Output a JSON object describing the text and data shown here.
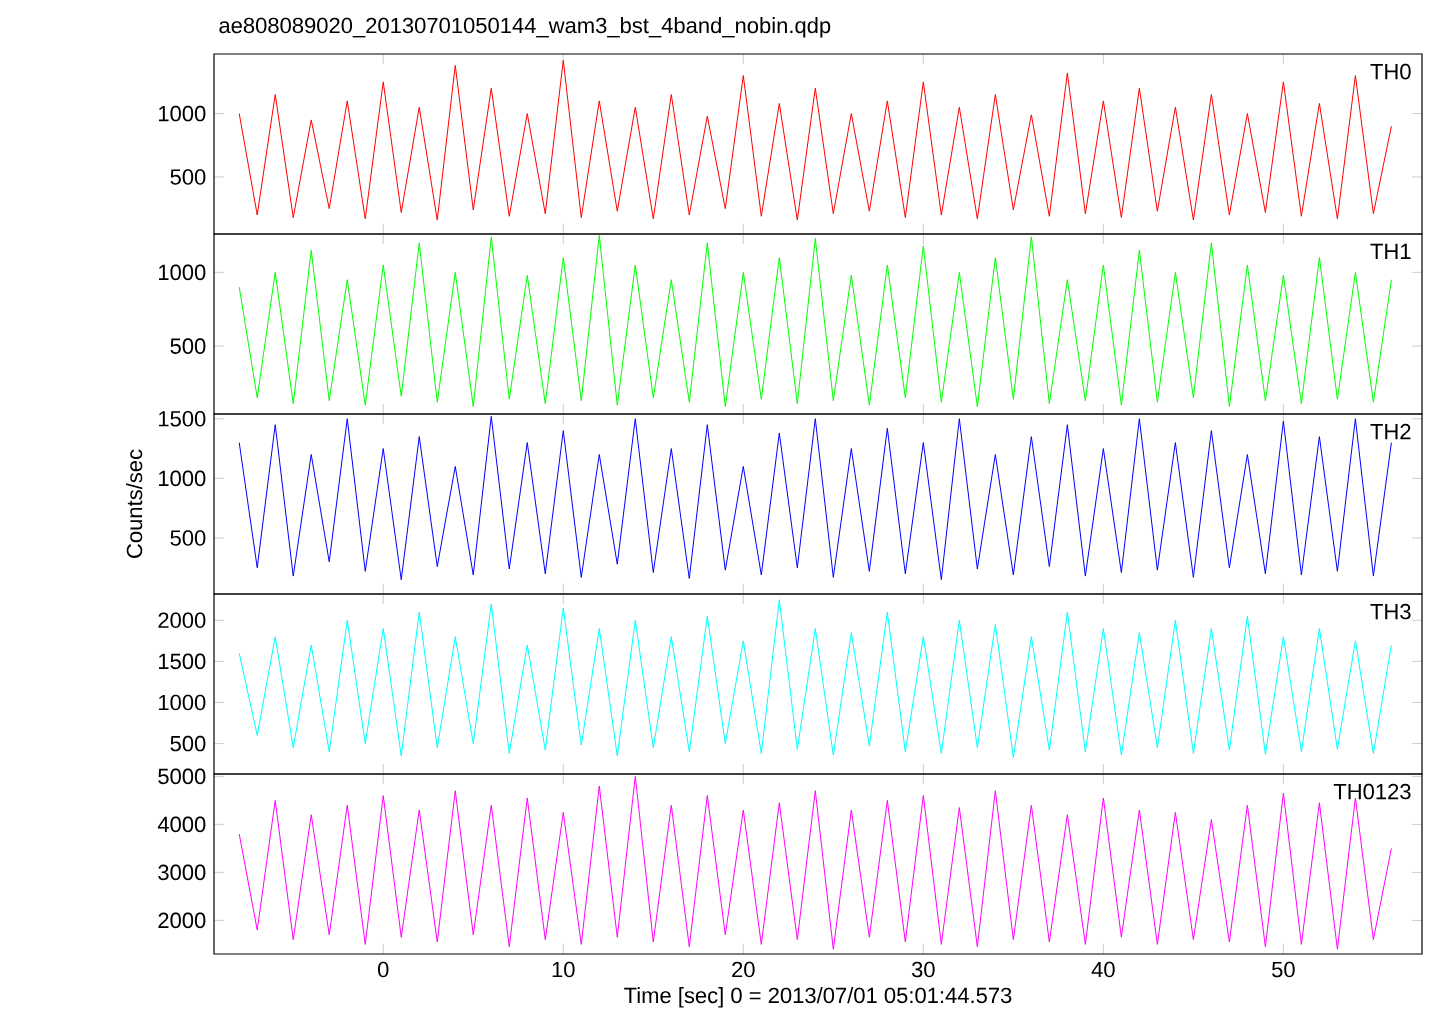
{
  "chart_data": [
    {
      "type": "line",
      "title": "ae808089020_20130701050144_wam3_bst_4band_nobin.qdp",
      "tick_labels": "y",
      "xlim": [
        -9.4,
        57.7
      ],
      "xticks": [
        0,
        10,
        20,
        30,
        40,
        50
      ],
      "ylim": [
        50,
        1470
      ],
      "yticks": [
        500,
        1000
      ],
      "x": [
        -8,
        -7,
        -6,
        -5,
        -4,
        -3,
        -2,
        -1,
        0,
        1,
        2,
        3,
        4,
        5,
        6,
        7,
        8,
        9,
        10,
        11,
        12,
        13,
        14,
        15,
        16,
        17,
        18,
        19,
        20,
        21,
        22,
        23,
        24,
        25,
        26,
        27,
        28,
        29,
        30,
        31,
        32,
        33,
        34,
        35,
        36,
        37,
        38,
        39,
        40,
        41,
        42,
        43,
        44,
        45,
        46,
        47,
        48,
        49,
        50,
        51,
        52,
        53,
        54,
        55,
        56
      ],
      "series": [
        {
          "name": "TH0",
          "color": "#ff0000",
          "values": [
            1000,
            200,
            1150,
            180,
            950,
            250,
            1100,
            170,
            1250,
            220,
            1050,
            160,
            1380,
            240,
            1200,
            190,
            1000,
            210,
            1420,
            180,
            1100,
            230,
            1050,
            170,
            1150,
            200,
            980,
            250,
            1300,
            190,
            1080,
            160,
            1200,
            210,
            1000,
            230,
            1100,
            180,
            1250,
            200,
            1050,
            170,
            1150,
            240,
            990,
            190,
            1320,
            210,
            1100,
            180,
            1200,
            230,
            1050,
            160,
            1150,
            200,
            1000,
            220,
            1250,
            190,
            1080,
            170,
            1300,
            210,
            900
          ]
        }
      ]
    },
    {
      "type": "line",
      "tick_labels": "y",
      "xlim": [
        -9.4,
        57.7
      ],
      "xticks": [
        0,
        10,
        20,
        30,
        40,
        50
      ],
      "ylim": [
        40,
        1260
      ],
      "yticks": [
        500,
        1000
      ],
      "x": [
        -8,
        -7,
        -6,
        -5,
        -4,
        -3,
        -2,
        -1,
        0,
        1,
        2,
        3,
        4,
        5,
        6,
        7,
        8,
        9,
        10,
        11,
        12,
        13,
        14,
        15,
        16,
        17,
        18,
        19,
        20,
        21,
        22,
        23,
        24,
        25,
        26,
        27,
        28,
        29,
        30,
        31,
        32,
        33,
        34,
        35,
        36,
        37,
        38,
        39,
        40,
        41,
        42,
        43,
        44,
        45,
        46,
        47,
        48,
        49,
        50,
        51,
        52,
        53,
        54,
        55,
        56
      ],
      "series": [
        {
          "name": "TH1",
          "color": "#00ff00",
          "values": [
            900,
            150,
            1000,
            110,
            1150,
            130,
            950,
            100,
            1050,
            160,
            1200,
            120,
            1000,
            90,
            1240,
            140,
            980,
            110,
            1100,
            130,
            1250,
            100,
            1050,
            150,
            950,
            120,
            1200,
            90,
            1000,
            140,
            1100,
            110,
            1230,
            130,
            980,
            100,
            1050,
            150,
            1180,
            120,
            1000,
            90,
            1100,
            140,
            1240,
            110,
            950,
            130,
            1050,
            100,
            1150,
            120,
            1000,
            150,
            1200,
            90,
            1050,
            130,
            980,
            110,
            1100,
            140,
            1000,
            120,
            950
          ]
        }
      ]
    },
    {
      "type": "line",
      "ylabel": "Counts/sec",
      "tick_labels": "y",
      "xlim": [
        -9.4,
        57.7
      ],
      "xticks": [
        0,
        10,
        20,
        30,
        40,
        50
      ],
      "ylim": [
        30,
        1540
      ],
      "yticks": [
        500,
        1000,
        1500
      ],
      "x": [
        -8,
        -7,
        -6,
        -5,
        -4,
        -3,
        -2,
        -1,
        0,
        1,
        2,
        3,
        4,
        5,
        6,
        7,
        8,
        9,
        10,
        11,
        12,
        13,
        14,
        15,
        16,
        17,
        18,
        19,
        20,
        21,
        22,
        23,
        24,
        25,
        26,
        27,
        28,
        29,
        30,
        31,
        32,
        33,
        34,
        35,
        36,
        37,
        38,
        39,
        40,
        41,
        42,
        43,
        44,
        45,
        46,
        47,
        48,
        49,
        50,
        51,
        52,
        53,
        54,
        55,
        56
      ],
      "series": [
        {
          "name": "TH2",
          "color": "#0000ff",
          "values": [
            1300,
            250,
            1450,
            180,
            1200,
            300,
            1500,
            220,
            1250,
            150,
            1350,
            260,
            1100,
            190,
            1520,
            240,
            1300,
            200,
            1400,
            170,
            1200,
            280,
            1500,
            210,
            1250,
            160,
            1450,
            230,
            1100,
            190,
            1380,
            250,
            1500,
            170,
            1250,
            220,
            1420,
            200,
            1300,
            150,
            1500,
            240,
            1200,
            190,
            1350,
            260,
            1450,
            180,
            1250,
            210,
            1500,
            230,
            1300,
            170,
            1400,
            250,
            1200,
            200,
            1480,
            190,
            1350,
            220,
            1500,
            180,
            1300
          ]
        }
      ]
    },
    {
      "type": "line",
      "tick_labels": "y",
      "xlim": [
        -9.4,
        57.7
      ],
      "xticks": [
        0,
        10,
        20,
        30,
        40,
        50
      ],
      "ylim": [
        130,
        2320
      ],
      "yticks": [
        500,
        1000,
        1500,
        2000
      ],
      "x": [
        -8,
        -7,
        -6,
        -5,
        -4,
        -3,
        -2,
        -1,
        0,
        1,
        2,
        3,
        4,
        5,
        6,
        7,
        8,
        9,
        10,
        11,
        12,
        13,
        14,
        15,
        16,
        17,
        18,
        19,
        20,
        21,
        22,
        23,
        24,
        25,
        26,
        27,
        28,
        29,
        30,
        31,
        32,
        33,
        34,
        35,
        36,
        37,
        38,
        39,
        40,
        41,
        42,
        43,
        44,
        45,
        46,
        47,
        48,
        49,
        50,
        51,
        52,
        53,
        54,
        55,
        56
      ],
      "series": [
        {
          "name": "TH3",
          "color": "#00ffff",
          "values": [
            1600,
            600,
            1800,
            450,
            1700,
            400,
            2000,
            500,
            1900,
            350,
            2100,
            450,
            1800,
            500,
            2200,
            380,
            1700,
            420,
            2150,
            480,
            1900,
            350,
            2000,
            450,
            1800,
            400,
            2050,
            500,
            1750,
            380,
            2250,
            430,
            1900,
            360,
            1850,
            470,
            2100,
            400,
            1800,
            380,
            2000,
            450,
            1950,
            330,
            1800,
            420,
            2100,
            400,
            1900,
            360,
            1850,
            450,
            2000,
            380,
            1900,
            420,
            2050,
            370,
            1800,
            400,
            1900,
            430,
            1750,
            380,
            1700
          ]
        }
      ]
    },
    {
      "type": "line",
      "xlabel": "Time [sec] 0 = 2013/07/01 05:01:44.573",
      "xlim": [
        -9.4,
        57.7
      ],
      "xticks": [
        0,
        10,
        20,
        30,
        40,
        50
      ],
      "ylim": [
        1300,
        5050
      ],
      "yticks": [
        2000,
        3000,
        4000,
        5000
      ],
      "x": [
        -8,
        -7,
        -6,
        -5,
        -4,
        -3,
        -2,
        -1,
        0,
        1,
        2,
        3,
        4,
        5,
        6,
        7,
        8,
        9,
        10,
        11,
        12,
        13,
        14,
        15,
        16,
        17,
        18,
        19,
        20,
        21,
        22,
        23,
        24,
        25,
        26,
        27,
        28,
        29,
        30,
        31,
        32,
        33,
        34,
        35,
        36,
        37,
        38,
        39,
        40,
        41,
        42,
        43,
        44,
        45,
        46,
        47,
        48,
        49,
        50,
        51,
        52,
        53,
        54,
        55,
        56
      ],
      "series": [
        {
          "name": "TH0123",
          "color": "#ff00ff",
          "values": [
            3800,
            1800,
            4500,
            1600,
            4200,
            1700,
            4400,
            1500,
            4600,
            1650,
            4300,
            1550,
            4700,
            1700,
            4400,
            1450,
            4550,
            1600,
            4250,
            1500,
            4800,
            1650,
            5000,
            1550,
            4400,
            1450,
            4600,
            1700,
            4300,
            1500,
            4450,
            1600,
            4700,
            1400,
            4300,
            1650,
            4500,
            1550,
            4600,
            1500,
            4350,
            1450,
            4700,
            1600,
            4400,
            1550,
            4200,
            1500,
            4550,
            1650,
            4300,
            1500,
            4250,
            1600,
            4100,
            1550,
            4400,
            1450,
            4650,
            1500,
            4450,
            1400,
            4550,
            1600,
            3500
          ]
        }
      ]
    }
  ]
}
